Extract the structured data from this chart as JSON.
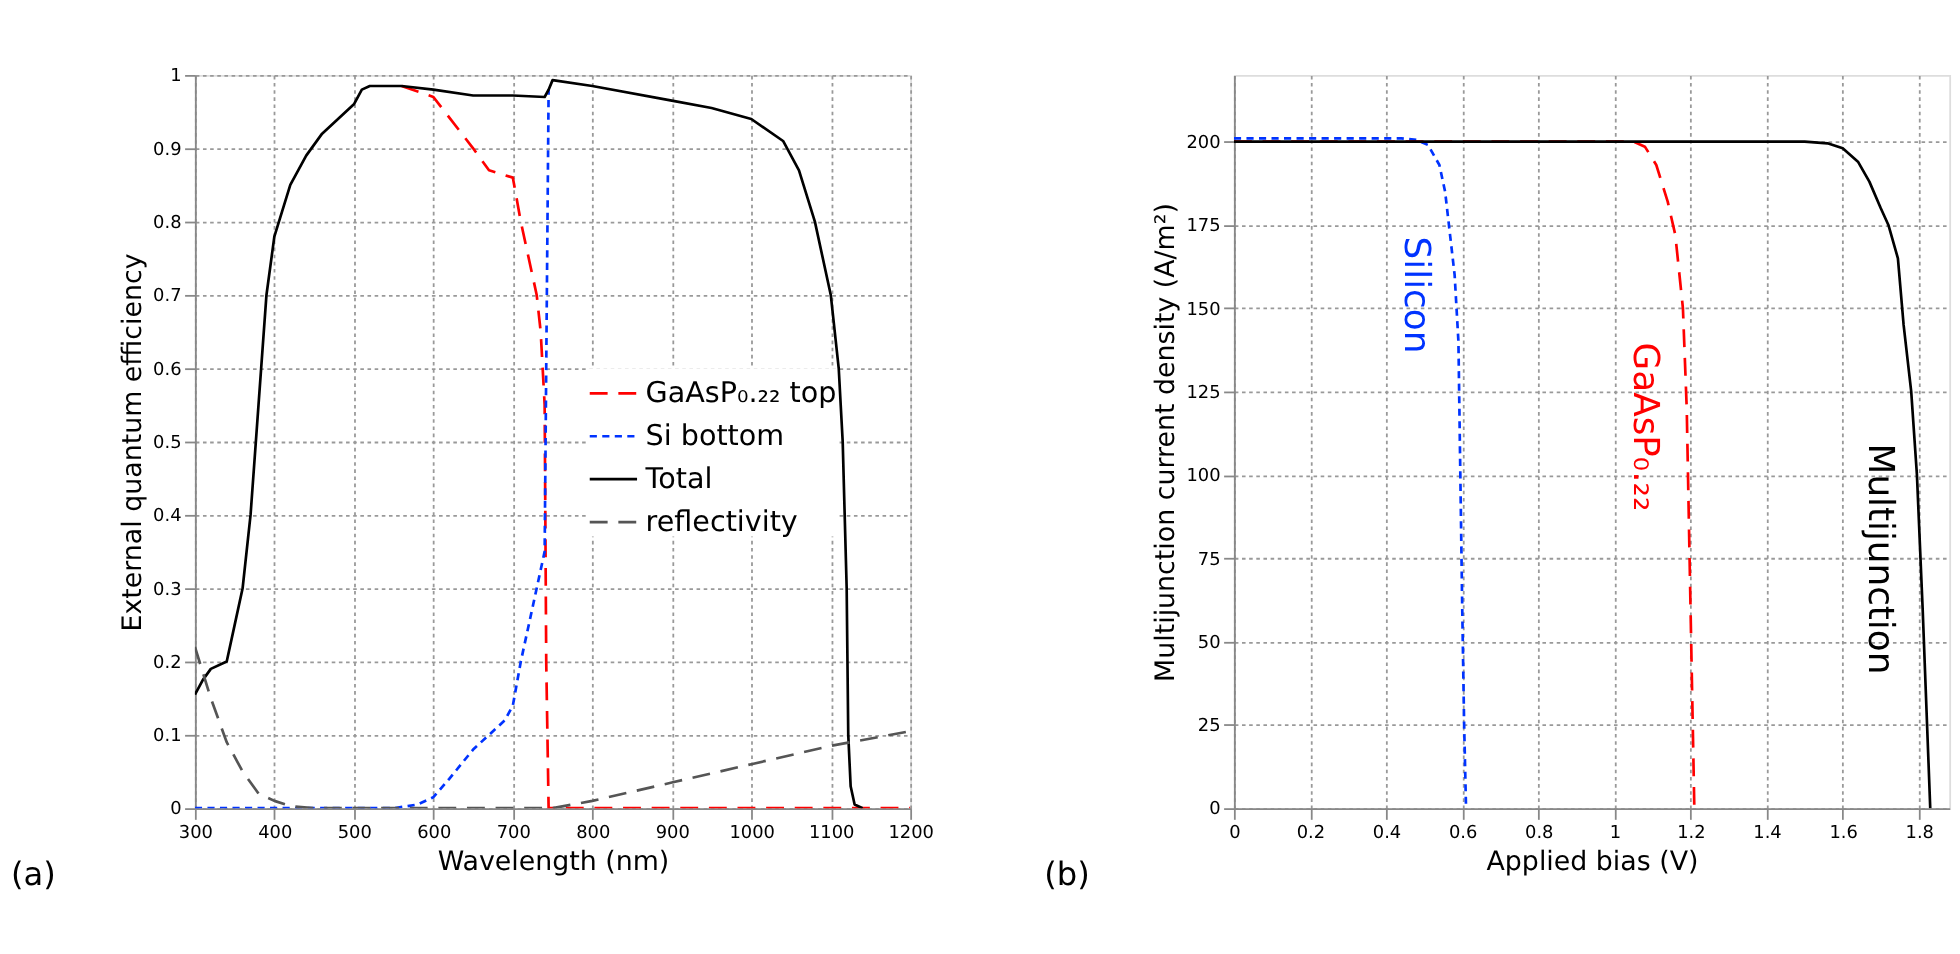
{
  "chart_data": [
    {
      "type": "line",
      "xlabel": "Wavelength (nm)",
      "ylabel": "External quantum efficiency",
      "annotations": [
        "(a)"
      ],
      "xlim": [
        300,
        1200
      ],
      "ylim": [
        0,
        1
      ],
      "xticks": [
        300,
        400,
        500,
        600,
        700,
        800,
        900,
        1000,
        1100,
        1200
      ],
      "yticks": [
        0,
        0.1,
        0.2,
        0.3,
        0.4,
        0.5,
        0.6,
        0.7,
        0.8,
        0.9,
        1
      ],
      "grid": true,
      "legend": "right",
      "series": [
        {
          "name": "GaAsP₀.₂₂ top",
          "color": "#ff0000",
          "line_style": "dashed",
          "x": [
            560,
            600,
            650,
            670,
            700,
            710,
            730,
            735,
            740,
            742,
            745,
            800,
            1000,
            1200
          ],
          "values": [
            0.985,
            0.97,
            0.9,
            0.87,
            0.86,
            0.8,
            0.7,
            0.65,
            0.55,
            0.2,
            0,
            0,
            0,
            0
          ]
        },
        {
          "name": "Si bottom",
          "color": "#0033ff",
          "line_style": "dotted",
          "x": [
            300,
            400,
            500,
            550,
            580,
            600,
            620,
            650,
            670,
            690,
            700,
            710,
            730,
            740,
            745
          ],
          "values": [
            0,
            0,
            0,
            0,
            0.005,
            0.015,
            0.04,
            0.08,
            0.1,
            0.12,
            0.14,
            0.2,
            0.3,
            0.35,
            0.98
          ]
        },
        {
          "name": "Total",
          "color": "#000000",
          "line_style": "solid",
          "x": [
            300,
            310,
            320,
            340,
            350,
            360,
            370,
            380,
            390,
            400,
            420,
            440,
            460,
            480,
            500,
            510,
            520,
            560,
            600,
            650,
            700,
            740,
            745,
            750,
            800,
            900,
            950,
            1000,
            1040,
            1060,
            1080,
            1100,
            1110,
            1115,
            1120,
            1122,
            1125,
            1130,
            1140
          ],
          "values": [
            0.155,
            0.175,
            0.19,
            0.2,
            0.25,
            0.3,
            0.4,
            0.55,
            0.7,
            0.78,
            0.85,
            0.89,
            0.92,
            0.94,
            0.96,
            0.98,
            0.985,
            0.985,
            0.98,
            0.972,
            0.972,
            0.97,
            0.98,
            0.993,
            0.985,
            0.965,
            0.955,
            0.94,
            0.91,
            0.87,
            0.8,
            0.7,
            0.6,
            0.5,
            0.3,
            0.1,
            0.03,
            0.005,
            0
          ]
        },
        {
          "name": "reflectivity",
          "color": "#555555",
          "line_style": "dashed",
          "x": [
            300,
            320,
            340,
            360,
            380,
            400,
            420,
            450,
            750,
            800,
            900,
            1000,
            1100,
            1200
          ],
          "values": [
            0.22,
            0.15,
            0.09,
            0.05,
            0.02,
            0.01,
            0.003,
            0,
            0,
            0.01,
            0.035,
            0.06,
            0.085,
            0.105
          ]
        }
      ]
    },
    {
      "type": "line",
      "xlabel": "Applied bias (V)",
      "ylabel": "Multijunction current density (A/m²)",
      "annotations": [
        "(b)"
      ],
      "xlim": [
        0,
        1.88
      ],
      "ylim": [
        0,
        220
      ],
      "xticks": [
        0,
        0.2,
        0.4,
        0.6,
        0.8,
        1,
        1.2,
        1.4,
        1.6,
        1.8
      ],
      "yticks": [
        0,
        25,
        50,
        75,
        100,
        125,
        150,
        175,
        200
      ],
      "grid": true,
      "series": [
        {
          "name": "Silicon",
          "color": "#0033ff",
          "line_style": "dotted",
          "x": [
            0,
            0.44,
            0.48,
            0.51,
            0.54,
            0.555,
            0.565,
            0.58,
            0.59,
            0.595,
            0.6,
            0.605,
            0.61
          ],
          "values": [
            201,
            201,
            200.5,
            199,
            193,
            185,
            175,
            160,
            140,
            100,
            60,
            25,
            0
          ]
        },
        {
          "name": "GaAsP₀.₂₂",
          "color": "#ff0000",
          "line_style": "dashed",
          "x": [
            0,
            1.05,
            1.08,
            1.11,
            1.14,
            1.16,
            1.18,
            1.19,
            1.2,
            1.21
          ],
          "values": [
            200,
            200,
            198.5,
            193,
            182,
            172,
            150,
            120,
            60,
            0
          ]
        },
        {
          "name": "Multijunction",
          "color": "#000000",
          "line_style": "solid",
          "x": [
            0,
            1.5,
            1.56,
            1.6,
            1.64,
            1.67,
            1.7,
            1.72,
            1.745,
            1.76,
            1.78,
            1.795,
            1.81,
            1.83
          ],
          "values": [
            200,
            200,
            199.5,
            198,
            194,
            188,
            180,
            175,
            165,
            145,
            125,
            100,
            60,
            0
          ]
        }
      ]
    }
  ]
}
